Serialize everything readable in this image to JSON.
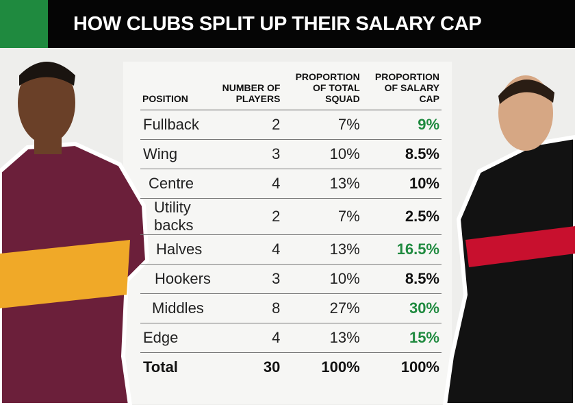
{
  "header": {
    "title": "HOW CLUBS SPLIT UP THEIR SALARY CAP"
  },
  "table": {
    "columns": [
      "POSITION",
      "NUMBER OF PLAYERS",
      "PROPORTION OF TOTAL SQUAD",
      "PROPORTION OF SALARY CAP"
    ],
    "rows": [
      [
        "Fullback",
        2,
        "7%",
        "9%"
      ],
      [
        "Wing",
        3,
        "10%",
        "8.5%"
      ],
      [
        "Centre",
        4,
        "13%",
        "10%"
      ],
      [
        "Utility backs",
        2,
        "7%",
        "2.5%"
      ],
      [
        "Halves",
        4,
        "13%",
        "16.5%"
      ],
      [
        "Hookers",
        3,
        "10%",
        "8.5%"
      ],
      [
        "Middles",
        8,
        "27%",
        "30%"
      ],
      [
        "Edge",
        4,
        "13%",
        "15%"
      ],
      [
        "Total",
        30,
        "100%",
        "100%"
      ]
    ],
    "salary_cap_colors": [
      "#1f8a3f",
      "#111111",
      "#111111",
      "#111111",
      "#1f8a3f",
      "#111111",
      "#1f8a3f",
      "#1f8a3f",
      "#111111"
    ]
  }
}
